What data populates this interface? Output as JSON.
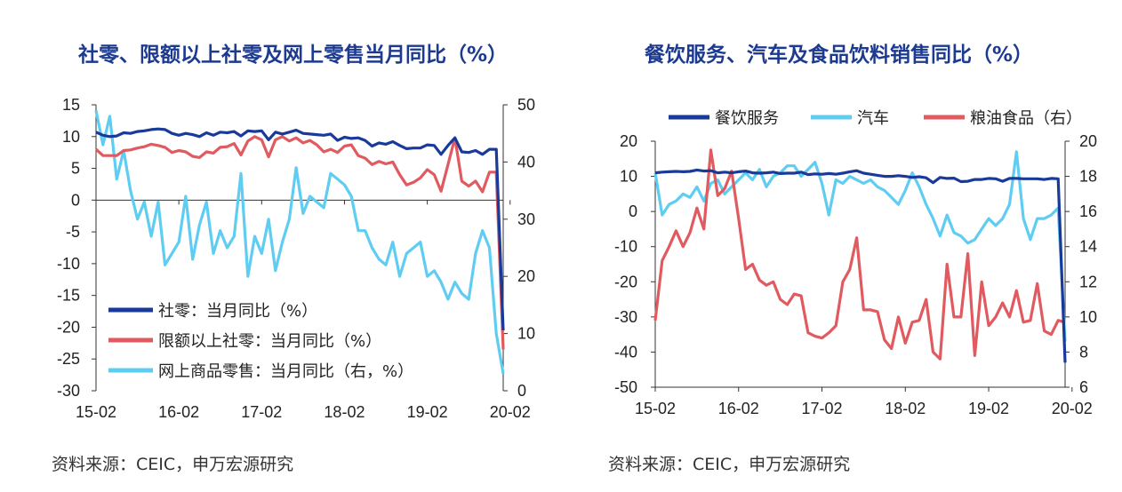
{
  "charts": [
    {
      "title": "社零、限额以上社零及网上零售当月同比（%）",
      "source": "资料来源：CEIC，申万宏源研究"
    },
    {
      "title": "餐饮服务、汽车及食品饮料销售同比（%）",
      "source": "资料来源：CEIC，申万宏源研究"
    }
  ],
  "colors": {
    "dark_blue": "#1a3a9a",
    "red": "#e05a5f",
    "light_blue": "#5fcdf2"
  },
  "chart_data": [
    {
      "type": "line",
      "title": "社零、限额以上社零及网上零售当月同比（%）",
      "x_tick_labels": [
        "15-02",
        "16-02",
        "17-02",
        "18-02",
        "19-02",
        "20-02"
      ],
      "x_start": "2015-02",
      "x_end": "2020-02",
      "x_step": "month",
      "y_left": {
        "range": [
          -30,
          15
        ],
        "ticks": [
          15,
          10,
          5,
          0,
          -5,
          -10,
          -15,
          -20,
          -25,
          -30
        ]
      },
      "y_right": {
        "range": [
          0,
          50
        ],
        "ticks": [
          50,
          40,
          30,
          20,
          10,
          0
        ]
      },
      "legend_position": "bottom-left",
      "series": [
        {
          "name": "社零：当月同比（%）",
          "axis": "left",
          "color": "#1a3a9a",
          "values": [
            10.7,
            10.2,
            10.0,
            10.1,
            10.6,
            10.5,
            10.8,
            10.9,
            11.1,
            11.2,
            11.1,
            10.5,
            10.2,
            10.5,
            10.3,
            10.0,
            10.6,
            10.2,
            10.7,
            10.6,
            10.8,
            10.1,
            10.9,
            10.8,
            10.9,
            9.5,
            10.7,
            10.4,
            10.7,
            11.0,
            10.5,
            10.4,
            10.3,
            10.2,
            10.4,
            9.4,
            9.9,
            9.7,
            9.8,
            9.4,
            8.5,
            9.0,
            8.8,
            9.2,
            8.6,
            8.1,
            8.2,
            8.2,
            8.7,
            8.6,
            7.2,
            8.6,
            9.8,
            7.6,
            7.5,
            7.8,
            7.2,
            8.0,
            8.0,
            -20.5
          ]
        },
        {
          "name": "限额以上社零：当月同比（%）",
          "axis": "left",
          "color": "#e05a5f",
          "values": [
            8.0,
            7.0,
            7.0,
            7.0,
            7.8,
            7.9,
            8.2,
            8.4,
            8.8,
            8.6,
            8.3,
            7.5,
            7.8,
            7.6,
            6.9,
            6.7,
            7.6,
            7.4,
            8.3,
            8.4,
            8.9,
            7.1,
            9.3,
            10.0,
            9.5,
            6.8,
            9.5,
            10.0,
            9.3,
            9.8,
            9.0,
            9.4,
            8.7,
            7.6,
            8.0,
            7.5,
            8.5,
            8.7,
            7.0,
            6.6,
            5.6,
            6.1,
            5.7,
            6.0,
            4.0,
            2.4,
            2.8,
            3.5,
            4.8,
            4.0,
            1.4,
            5.6,
            9.8,
            3.0,
            2.2,
            3.0,
            1.3,
            4.4,
            4.4,
            -23.5
          ]
        },
        {
          "name": "网上商品零售：当月同比（右，%）",
          "axis": "right",
          "color": "#5fcdf2",
          "values": [
            49.0,
            43.0,
            48.0,
            37.0,
            42.0,
            35.0,
            30.0,
            33.0,
            27.0,
            33.0,
            22.0,
            24.0,
            26.0,
            34.0,
            23.0,
            29.0,
            33.0,
            24.0,
            28.0,
            25.0,
            27.0,
            38.0,
            20.0,
            27.0,
            24.0,
            30.0,
            21.0,
            26.0,
            30.0,
            39.0,
            31.0,
            34.0,
            33.0,
            32.0,
            38.0,
            37.0,
            36.0,
            34.0,
            28.0,
            28.0,
            25.0,
            23.0,
            22.0,
            26.0,
            20.0,
            24.0,
            25.0,
            26.0,
            20.0,
            21.0,
            19.0,
            16.0,
            19.0,
            17.0,
            16.0,
            24.0,
            28.0,
            25.0,
            10.0,
            3.0
          ]
        }
      ]
    },
    {
      "type": "line",
      "title": "餐饮服务、汽车及食品饮料销售同比（%）",
      "x_tick_labels": [
        "15-02",
        "16-02",
        "17-02",
        "18-02",
        "19-02",
        "20-02"
      ],
      "x_start": "2015-02",
      "x_end": "2020-02",
      "x_step": "month",
      "y_left": {
        "range": [
          -50,
          20
        ],
        "ticks": [
          20,
          10,
          0,
          -10,
          -20,
          -30,
          -40,
          -50
        ]
      },
      "y_right": {
        "range": [
          6,
          20
        ],
        "ticks": [
          20,
          18,
          16,
          14,
          12,
          10,
          8,
          6
        ]
      },
      "legend_position": "top",
      "series": [
        {
          "name": "餐饮服务",
          "axis": "left",
          "color": "#1a3a9a",
          "values": [
            11.0,
            11.2,
            11.3,
            11.4,
            11.3,
            11.4,
            11.8,
            11.5,
            11.6,
            11.0,
            11.2,
            11.0,
            11.3,
            11.5,
            11.0,
            10.9,
            11.0,
            11.2,
            10.8,
            10.9,
            10.9,
            11.2,
            10.5,
            10.7,
            10.6,
            10.8,
            10.6,
            10.9,
            11.3,
            11.6,
            10.9,
            10.6,
            10.3,
            10.0,
            10.0,
            10.2,
            10.0,
            9.7,
            9.9,
            9.6,
            8.2,
            9.7,
            9.4,
            9.5,
            8.5,
            8.6,
            9.1,
            9.1,
            9.4,
            9.3,
            8.6,
            9.4,
            9.4,
            9.3,
            9.3,
            9.3,
            9.1,
            9.4,
            9.3,
            -43.0
          ]
        },
        {
          "name": "汽车",
          "axis": "left",
          "color": "#5fcdf2",
          "values": [
            11.0,
            -1.0,
            2.0,
            3.0,
            5.0,
            4.0,
            7.0,
            3.0,
            8.0,
            9.0,
            5.0,
            7.0,
            9.0,
            11.0,
            9.0,
            12.0,
            7.0,
            10.0,
            11.0,
            13.0,
            13.0,
            10.0,
            12.0,
            14.0,
            8.0,
            -1.0,
            9.0,
            8.0,
            10.0,
            9.0,
            8.0,
            9.0,
            7.0,
            6.0,
            4.0,
            2.0,
            6.0,
            11.0,
            7.0,
            2.0,
            -2.0,
            -7.0,
            -1.0,
            -6.0,
            -7.0,
            -9.0,
            -8.0,
            -5.0,
            -2.0,
            -4.0,
            -2.0,
            2.0,
            17.0,
            -2.0,
            -8.0,
            -2.0,
            -2.0,
            -1.0,
            1.0,
            -37.0
          ]
        },
        {
          "name": "粮油食品（右）",
          "axis": "right",
          "color": "#e05a5f",
          "values": [
            9.8,
            13.2,
            14.0,
            14.9,
            14.0,
            14.8,
            16.2,
            15.0,
            19.5,
            16.9,
            17.3,
            18.3,
            15.6,
            12.7,
            13.0,
            12.1,
            11.8,
            12.0,
            11.0,
            10.7,
            11.3,
            11.2,
            9.1,
            8.9,
            8.8,
            9.1,
            9.5,
            12.0,
            12.7,
            14.5,
            10.4,
            10.4,
            10.3,
            8.7,
            8.2,
            10.0,
            8.5,
            9.7,
            9.8,
            11.0,
            8.0,
            7.6,
            13.0,
            10.0,
            10.0,
            13.6,
            7.8,
            12.0,
            9.5,
            10.0,
            10.8,
            10.0,
            11.5,
            9.7,
            9.8,
            11.9,
            9.2,
            9.0,
            9.8,
            9.7
          ]
        }
      ]
    }
  ]
}
